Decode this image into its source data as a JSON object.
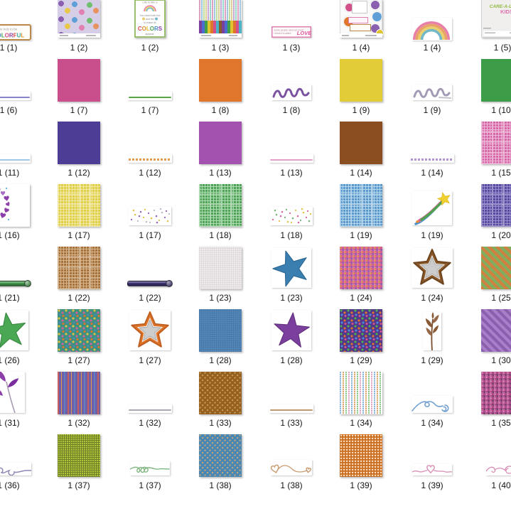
{
  "app": {
    "name": "file-explorer-thumbnail-grid",
    "background": "#ffffff",
    "label_color": "#141414"
  },
  "grid": {
    "columns": 8,
    "rows": 8,
    "items": [
      {
        "label": "1 (1)",
        "kind": "sign_colorful",
        "line1": "is truly to be",
        "word": "COLORFUL",
        "border": "#b9884a",
        "letter_colors": [
          "#e0752c",
          "#4a8ad0",
          "#4aa854",
          "#d4508b",
          "#8b3fa8",
          "#d44a4a",
          "#2fa8a0",
          "#e0912f"
        ]
      },
      {
        "label": "1 (2)",
        "kind": "collage",
        "base": "#d6cde6",
        "blob_colors": [
          "#8b5fb0",
          "#e8c84a",
          "#5f9fd8",
          "#e080b0",
          "#6fbf6f",
          "#e8925f"
        ]
      },
      {
        "label": "1 (2)",
        "kind": "card_colors",
        "border": "#9abf6f",
        "line_top": "Life is like a",
        "lines": [
          "You need both the",
          "and the",
          "to make its"
        ],
        "word": "COLORS",
        "tail": "appear.",
        "letter_colors": [
          "#d44a4a",
          "#e0912f",
          "#e0c42f",
          "#4aa854",
          "#4a8ad0",
          "#8b3fa8"
        ]
      },
      {
        "label": "1 (3)",
        "kind": "preview_stripes",
        "top_colors": [
          "#e8a8c8",
          "#a8d0e8",
          "#c8e8a8",
          "#e8d8a0",
          "#d0b0e0",
          "#a0e0d8"
        ],
        "bottom_colors": [
          "#7b3f9e",
          "#4a6fd0",
          "#3f9e47",
          "#e0c42f",
          "#e0752c",
          "#d4508b",
          "#4ab5c8",
          "#8a5a2a"
        ]
      },
      {
        "label": "1 (3)",
        "kind": "banner_love",
        "border": "#e080b0",
        "lines": [
          "some people care too much",
          "I think it's called"
        ],
        "word": "LOVE",
        "word_color": "#e0559b"
      },
      {
        "label": "1 (4)",
        "kind": "sticker_sheet",
        "circle_colors": [
          "#e0752c",
          "#8b5fb0",
          "#5f9fd8",
          "#8b5fb0",
          "#e0c42f",
          "#d4508b"
        ]
      },
      {
        "label": "1 (4)",
        "kind": "rainbow",
        "arc_colors": [
          "#e87fa8",
          "#e8a368",
          "#ead06a",
          "#74b8c8"
        ]
      },
      {
        "label": "1 (5)",
        "kind": "sheet_kids",
        "title": "CARE-A-LOT",
        "subtitle": "KIDS",
        "title_color": "#8fba3f",
        "subtitle_color": "#e06fae",
        "base": "#f1efed"
      },
      {
        "label": "1 (6)",
        "kind": "ribbon_line",
        "color": "#8781c9"
      },
      {
        "label": "1 (7)",
        "kind": "solid",
        "color": "#c94f8c"
      },
      {
        "label": "1 (7)",
        "kind": "ribbon_line",
        "color": "#55a445"
      },
      {
        "label": "1 (8)",
        "kind": "solid",
        "color": "#e0752c"
      },
      {
        "label": "1 (8)",
        "kind": "ribbon_curl",
        "color": "#7b52a0",
        "tail": false
      },
      {
        "label": "1 (9)",
        "kind": "solid",
        "color": "#e2cc37"
      },
      {
        "label": "1 (9)",
        "kind": "ribbon_curl",
        "color": "#a39bb5",
        "tail": true
      },
      {
        "label": "1 (10)",
        "kind": "solid",
        "color": "#3d9c47"
      },
      {
        "label": "1 (11)",
        "kind": "ribbon_line",
        "color": "#9ec8e8"
      },
      {
        "label": "1 (12)",
        "kind": "solid",
        "color": "#4e3d94"
      },
      {
        "label": "1 (12)",
        "kind": "ribbon_dashed",
        "color": "#e59b4e"
      },
      {
        "label": "1 (13)",
        "kind": "solid",
        "color": "#a352b0"
      },
      {
        "label": "1 (13)",
        "kind": "ribbon_line",
        "color": "#e2a0c8"
      },
      {
        "label": "1 (14)",
        "kind": "solid",
        "color": "#8a4e20"
      },
      {
        "label": "1 (14)",
        "kind": "ribbon_dashed",
        "color": "#b393cf"
      },
      {
        "label": "1 (15)",
        "kind": "plaid",
        "base": "#d668a8",
        "line": "#f0b8d8"
      },
      {
        "label": "1 (16)",
        "kind": "hearts_wreath",
        "color": "#8b3fa8",
        "light": "#a86fc0",
        "accent": "#6fb5e0"
      },
      {
        "label": "1 (17)",
        "kind": "plaid",
        "base": "#e0cf45",
        "line": "#f0e9a8"
      },
      {
        "label": "1 (17)",
        "kind": "confetti",
        "colors": [
          "#8b5fb0",
          "#e0c040",
          "#b8b8c8"
        ]
      },
      {
        "label": "1 (18)",
        "kind": "plaid",
        "base": "#4fa357",
        "line": "#b0dcb4"
      },
      {
        "label": "1 (18)",
        "kind": "confetti",
        "colors": [
          "#d45f9b",
          "#6fae6f",
          "#e0c040"
        ]
      },
      {
        "label": "1 (19)",
        "kind": "plaid",
        "base": "#5b99cc",
        "line": "#b8d8f0"
      },
      {
        "label": "1 (19)",
        "kind": "shooting_star",
        "trail_colors": [
          "#4a90d0",
          "#e8902f",
          "#e060a0",
          "#50a050"
        ],
        "star_color": "#f0d030"
      },
      {
        "label": "1 (20)",
        "kind": "plaid",
        "base": "#584a9c",
        "line": "#9a8fd0"
      },
      {
        "label": "1 (21)",
        "kind": "ribbon_rod",
        "color": "#3f9447"
      },
      {
        "label": "1 (22)",
        "kind": "plaid",
        "base": "#a5713c",
        "line": "#d8b48a"
      },
      {
        "label": "1 (22)",
        "kind": "ribbon_rod",
        "color": "#3a3070"
      },
      {
        "label": "1 (23)",
        "kind": "texture",
        "base": "#efeced",
        "line": "#e0dadc"
      },
      {
        "label": "1 (23)",
        "kind": "star",
        "color": "#3a7fb0",
        "edge": "#2f6a96",
        "rot": -18
      },
      {
        "label": "1 (24)",
        "kind": "mosaic",
        "base": "#cf5f94",
        "dots": [
          "#e0944f",
          "#8a5fb0"
        ]
      },
      {
        "label": "1 (24)",
        "kind": "star_double",
        "outer": "#8a5a2a",
        "outer_edge": "#6f4520",
        "inner": "#cccccc",
        "inner_edge": "#a8a8a8"
      },
      {
        "label": "1 (25)",
        "kind": "argyle",
        "base": "#d08040",
        "alt": "#7fae5f",
        "line": "#d45f9b"
      },
      {
        "label": "1 (26)",
        "kind": "star",
        "color": "#4aa854",
        "edge": "#3a8a42",
        "rot": -8
      },
      {
        "label": "1 (27)",
        "kind": "dots_multi",
        "base": "#3f9080",
        "dots": [
          "#e0c040",
          "#d45f9b",
          "#4a8ab5",
          "#e0752c"
        ]
      },
      {
        "label": "1 (27)",
        "kind": "star_double",
        "outer": "#e0752c",
        "outer_edge": "#c05f1f",
        "inner": "#cccccc",
        "inner_edge": "#a8a8a8"
      },
      {
        "label": "1 (28)",
        "kind": "texture",
        "base": "#5588bb",
        "line": "#4a7aa8"
      },
      {
        "label": "1 (28)",
        "kind": "star",
        "color": "#7b3f9e",
        "edge": "#63307f",
        "rot": 5
      },
      {
        "label": "1 (29)",
        "kind": "dots_multi",
        "base": "#53398a",
        "dots": [
          "#4ab54a",
          "#e0752c",
          "#4a8ae0",
          "#d44f8b"
        ]
      },
      {
        "label": "1 (29)",
        "kind": "twig",
        "color": "#8a5a35",
        "leaf": "#96684a"
      },
      {
        "label": "1 (30)",
        "kind": "argyle",
        "base": "#8a5fae",
        "alt": "#a87fc8",
        "line": "#e0a8d0"
      },
      {
        "label": "1 (31)",
        "kind": "twig_leaves",
        "color": "#8b3fa8",
        "leaf2": "#7b2f9e",
        "stem": "#a89bb0"
      },
      {
        "label": "1 (32)",
        "kind": "stripes_v",
        "base": "#6f5fa8",
        "stripes": [
          "#c85f5f",
          "#e09b4e",
          "#5f7fc0"
        ]
      },
      {
        "label": "1 (32)",
        "kind": "ribbon_line",
        "color": "#a8a8b0"
      },
      {
        "label": "1 (33)",
        "kind": "dots_diamond",
        "base": "#96611f",
        "dot": "#c89b5f"
      },
      {
        "label": "1 (33)",
        "kind": "ribbon_line",
        "color": "#c09a6f"
      },
      {
        "label": "1 (34)",
        "kind": "weave",
        "colors": [
          "#8ab5e0",
          "#e0a86f",
          "#8fc98f",
          "#e8a8c8"
        ]
      },
      {
        "label": "1 (34)",
        "kind": "string_bow",
        "color": "#6f9fd0"
      },
      {
        "label": "1 (35)",
        "kind": "mosaic",
        "base": "#b04a8a",
        "dots": [
          "#d47fb0",
          "#703f66"
        ]
      },
      {
        "label": "1 (36)",
        "kind": "doodle_loops",
        "color": "#8a87b5"
      },
      {
        "label": "1 (37)",
        "kind": "grid_paper",
        "base": "#b2c437",
        "line": "#6f7f2a"
      },
      {
        "label": "1 (37)",
        "kind": "doodle_swirl",
        "color": "#7fb57f"
      },
      {
        "label": "1 (38)",
        "kind": "dots_diamond",
        "base": "#4a87b2",
        "dot": "#c8a878"
      },
      {
        "label": "1 (38)",
        "kind": "doodle_hearts",
        "color": "#c89b6f"
      },
      {
        "label": "1 (39)",
        "kind": "grid_dots",
        "base": "#e0802f",
        "dot": "#f2e3cb"
      },
      {
        "label": "1 (39)",
        "kind": "doodle_heart",
        "color": "#d98fb5"
      },
      {
        "label": "1 (40)",
        "kind": "doodle_circle",
        "color": "#d98fb5"
      }
    ]
  }
}
